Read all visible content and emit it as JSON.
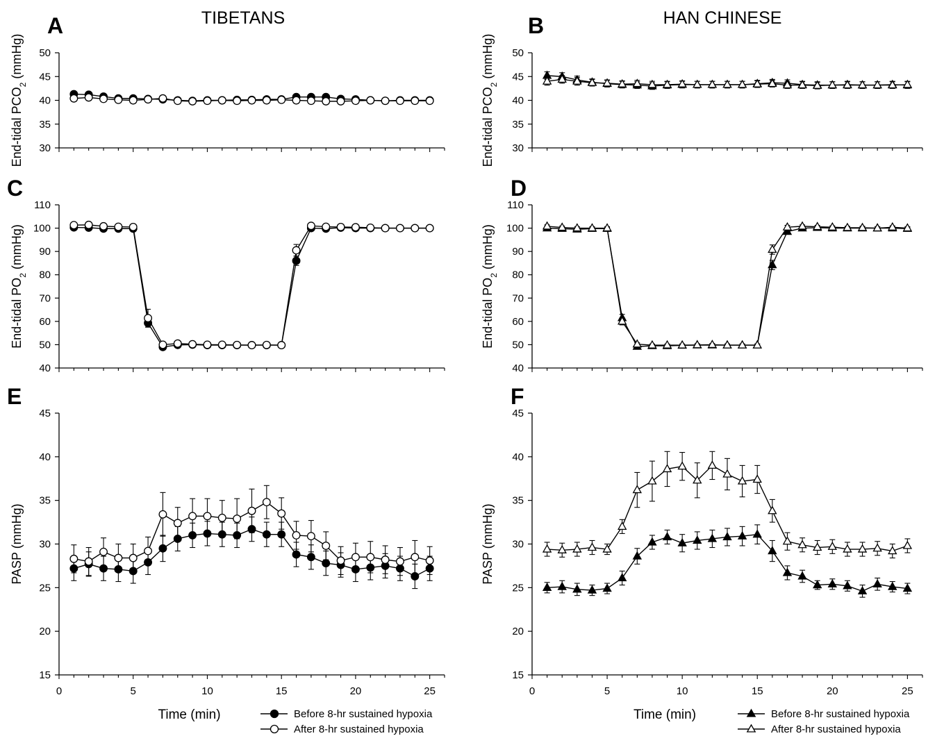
{
  "columns": {
    "left_title": "TIBETANS",
    "right_title": "HAN CHINESE"
  },
  "legend_left": {
    "before": "Before 8-hr sustained hypoxia",
    "after": "After 8-hr sustained hypoxia"
  },
  "legend_right": {
    "before": "Before 8-hr sustained hypoxia",
    "after": "After 8-hr sustained hypoxia"
  },
  "chart_data": [
    {
      "panel": "A",
      "type": "line",
      "ylabel_main": "End-tidal PCO",
      "ylabel_sub": "2",
      "ylabel_end": " (mmHg)",
      "xlabel": "",
      "xlim": [
        0,
        26
      ],
      "ylim": [
        30,
        50
      ],
      "xticks": [],
      "yticks": [
        30,
        35,
        40,
        45,
        50
      ],
      "x": [
        1,
        2,
        3,
        4,
        5,
        6,
        7,
        8,
        9,
        10,
        11,
        12,
        13,
        14,
        15,
        16,
        17,
        18,
        19,
        20,
        21,
        22,
        23,
        24,
        25
      ],
      "series": [
        {
          "name": "Before 8-hr sustained hypoxia",
          "marker": "circle",
          "fill": "#000000",
          "values": [
            41.3,
            41.2,
            40.8,
            40.4,
            40.4,
            40.3,
            40.2,
            40.0,
            39.9,
            40.0,
            40.0,
            40.1,
            40.1,
            40.2,
            40.2,
            40.7,
            40.7,
            40.7,
            40.3,
            40.2,
            40.0,
            39.9,
            40.0,
            40.0,
            40.0
          ],
          "errors": [
            0.5,
            0.5,
            0.5,
            0.5,
            0.5,
            0.5,
            0.6,
            0.5,
            0.5,
            0.5,
            0.5,
            0.5,
            0.5,
            0.5,
            0.5,
            0.5,
            0.5,
            0.5,
            0.5,
            0.5,
            0.5,
            0.5,
            0.5,
            0.5,
            0.5
          ]
        },
        {
          "name": "After 8-hr sustained hypoxia",
          "marker": "circle",
          "fill": "#ffffff",
          "values": [
            40.4,
            40.6,
            40.3,
            40.1,
            40.0,
            40.2,
            40.4,
            39.9,
            39.8,
            39.9,
            40.0,
            39.9,
            40.0,
            40.0,
            40.1,
            40.0,
            39.9,
            39.8,
            39.8,
            39.9,
            40.0,
            39.9,
            39.9,
            39.9,
            39.9
          ],
          "errors": [
            0.6,
            0.6,
            0.6,
            0.6,
            0.6,
            0.6,
            0.6,
            0.6,
            0.6,
            0.6,
            0.6,
            0.6,
            0.6,
            0.6,
            0.6,
            0.6,
            0.6,
            0.6,
            0.6,
            0.6,
            0.6,
            0.6,
            0.6,
            0.6,
            0.6
          ]
        }
      ]
    },
    {
      "panel": "B",
      "type": "line",
      "ylabel_main": "End-tidal PCO",
      "ylabel_sub": "2",
      "ylabel_end": " (mmHg)",
      "xlabel": "",
      "xlim": [
        0,
        26
      ],
      "ylim": [
        30,
        50
      ],
      "xticks": [],
      "yticks": [
        30,
        35,
        40,
        45,
        50
      ],
      "x": [
        1,
        2,
        3,
        4,
        5,
        6,
        7,
        8,
        9,
        10,
        11,
        12,
        13,
        14,
        15,
        16,
        17,
        18,
        19,
        20,
        21,
        22,
        23,
        24,
        25
      ],
      "series": [
        {
          "name": "Before 8-hr sustained hypoxia",
          "marker": "triangle",
          "fill": "#000000",
          "values": [
            45.2,
            45.0,
            44.3,
            43.8,
            43.5,
            43.3,
            43.2,
            43.0,
            43.2,
            43.3,
            43.3,
            43.3,
            43.3,
            43.3,
            43.5,
            43.7,
            43.6,
            43.3,
            43.2,
            43.2,
            43.3,
            43.2,
            43.2,
            43.3,
            43.2
          ],
          "errors": [
            0.8,
            0.8,
            0.8,
            0.7,
            0.7,
            0.7,
            0.7,
            0.7,
            0.7,
            0.7,
            0.7,
            0.7,
            0.7,
            0.7,
            0.7,
            0.7,
            0.7,
            0.7,
            0.7,
            0.7,
            0.7,
            0.7,
            0.7,
            0.7,
            0.7
          ]
        },
        {
          "name": "After 8-hr sustained hypoxia",
          "marker": "triangle",
          "fill": "#ffffff",
          "values": [
            44.0,
            44.4,
            44.0,
            43.7,
            43.6,
            43.4,
            43.5,
            43.3,
            43.3,
            43.4,
            43.3,
            43.3,
            43.3,
            43.3,
            43.4,
            43.5,
            43.2,
            43.2,
            43.1,
            43.2,
            43.2,
            43.2,
            43.2,
            43.2,
            43.3
          ],
          "errors": [
            0.8,
            0.8,
            0.8,
            0.7,
            0.7,
            0.7,
            0.7,
            0.7,
            0.7,
            0.7,
            0.7,
            0.7,
            0.7,
            0.7,
            0.7,
            0.7,
            0.7,
            0.7,
            0.7,
            0.7,
            0.7,
            0.7,
            0.7,
            0.7,
            0.7
          ]
        }
      ]
    },
    {
      "panel": "C",
      "type": "line",
      "ylabel_main": "End-tidal PO",
      "ylabel_sub": "2",
      "ylabel_end": " (mmHg)",
      "xlabel": "",
      "xlim": [
        0,
        26
      ],
      "ylim": [
        40,
        110
      ],
      "xticks": [],
      "yticks": [
        40,
        50,
        60,
        70,
        80,
        90,
        100,
        110
      ],
      "x": [
        1,
        2,
        3,
        4,
        5,
        6,
        7,
        8,
        9,
        10,
        11,
        12,
        13,
        14,
        15,
        16,
        17,
        18,
        19,
        20,
        21,
        22,
        23,
        24,
        25
      ],
      "series": [
        {
          "name": "Before 8-hr sustained hypoxia",
          "marker": "circle",
          "fill": "#000000",
          "values": [
            100.3,
            100.2,
            99.8,
            99.8,
            99.8,
            59.3,
            49.0,
            49.9,
            50.0,
            49.8,
            49.8,
            49.8,
            49.8,
            49.8,
            49.8,
            86.0,
            100.0,
            99.8,
            100.2,
            100.0,
            100.0,
            100.0,
            100.0,
            100.0,
            100.0
          ],
          "errors": [
            0.6,
            0.6,
            0.6,
            0.6,
            0.6,
            1.8,
            0.6,
            0.5,
            0.5,
            0.5,
            0.5,
            0.5,
            0.5,
            0.5,
            0.5,
            2.0,
            0.6,
            0.6,
            0.6,
            0.6,
            0.6,
            0.6,
            0.6,
            0.6,
            0.6
          ]
        },
        {
          "name": "After 8-hr sustained hypoxia",
          "marker": "circle",
          "fill": "#ffffff",
          "values": [
            101.3,
            101.4,
            100.8,
            100.6,
            100.5,
            61.4,
            50.0,
            50.5,
            50.2,
            50.0,
            50.0,
            49.9,
            49.8,
            49.9,
            49.8,
            90.5,
            101.0,
            100.6,
            100.5,
            100.4,
            100.2,
            100.0,
            100.0,
            100.0,
            100.0
          ],
          "errors": [
            0.6,
            0.6,
            0.6,
            0.6,
            0.6,
            3.8,
            0.6,
            0.5,
            0.5,
            0.5,
            0.5,
            0.5,
            0.5,
            0.5,
            0.5,
            2.5,
            0.6,
            0.6,
            0.6,
            0.6,
            0.6,
            0.6,
            0.6,
            0.6,
            0.6
          ]
        }
      ]
    },
    {
      "panel": "D",
      "type": "line",
      "ylabel_main": "End-tidal PO",
      "ylabel_sub": "2",
      "ylabel_end": " (mmHg)",
      "xlabel": "",
      "xlim": [
        0,
        26
      ],
      "ylim": [
        40,
        110
      ],
      "xticks": [],
      "yticks": [
        40,
        50,
        60,
        70,
        80,
        90,
        100,
        110
      ],
      "x": [
        1,
        2,
        3,
        4,
        5,
        6,
        7,
        8,
        9,
        10,
        11,
        12,
        13,
        14,
        15,
        16,
        17,
        18,
        19,
        20,
        21,
        22,
        23,
        24,
        25
      ],
      "series": [
        {
          "name": "Before 8-hr sustained hypoxia",
          "marker": "triangle",
          "fill": "#000000",
          "values": [
            100.0,
            99.8,
            99.5,
            99.8,
            99.8,
            61.5,
            49.2,
            49.5,
            49.5,
            49.7,
            49.8,
            49.8,
            49.8,
            49.8,
            49.8,
            84.2,
            98.5,
            100.0,
            100.2,
            100.0,
            100.0,
            100.0,
            100.0,
            100.0,
            99.8
          ],
          "errors": [
            0.6,
            0.6,
            0.6,
            0.6,
            0.6,
            1.5,
            0.6,
            0.5,
            0.5,
            0.5,
            0.5,
            0.5,
            0.5,
            0.5,
            0.5,
            2.0,
            1.0,
            0.6,
            0.6,
            0.6,
            0.6,
            0.6,
            0.6,
            0.6,
            0.6
          ]
        },
        {
          "name": "After 8-hr sustained hypoxia",
          "marker": "triangle",
          "fill": "#ffffff",
          "values": [
            100.8,
            100.3,
            100.0,
            100.0,
            100.0,
            60.0,
            50.2,
            49.8,
            49.8,
            49.8,
            49.9,
            50.0,
            49.8,
            49.8,
            49.8,
            90.8,
            100.4,
            100.8,
            100.6,
            100.4,
            100.2,
            100.2,
            100.0,
            100.4,
            100.0
          ],
          "errors": [
            0.6,
            0.6,
            0.6,
            0.6,
            0.6,
            1.5,
            0.6,
            0.5,
            0.5,
            0.5,
            0.5,
            0.5,
            0.5,
            0.5,
            0.5,
            2.0,
            0.8,
            0.6,
            0.6,
            0.6,
            0.6,
            0.6,
            0.6,
            0.6,
            0.6
          ]
        }
      ]
    },
    {
      "panel": "E",
      "type": "line",
      "ylabel_main": "PASP (mmHg)",
      "ylabel_sub": "",
      "ylabel_end": "",
      "xlabel": "Time (min)",
      "xlim": [
        0,
        26
      ],
      "ylim": [
        15,
        45
      ],
      "xticks": [
        0,
        5,
        10,
        15,
        20,
        25
      ],
      "yticks": [
        15,
        20,
        25,
        30,
        35,
        40,
        45
      ],
      "x": [
        1,
        2,
        3,
        4,
        5,
        6,
        7,
        8,
        9,
        10,
        11,
        12,
        13,
        14,
        15,
        16,
        17,
        18,
        19,
        20,
        21,
        22,
        23,
        24,
        25
      ],
      "series": [
        {
          "name": "Before 8-hr sustained hypoxia",
          "marker": "circle",
          "fill": "#000000",
          "values": [
            27.2,
            27.7,
            27.2,
            27.1,
            26.9,
            27.9,
            29.5,
            30.6,
            31.0,
            31.2,
            31.1,
            31.0,
            31.7,
            31.1,
            31.1,
            28.8,
            28.5,
            27.8,
            27.6,
            27.1,
            27.3,
            27.5,
            27.2,
            26.3,
            27.2
          ],
          "errors": [
            1.4,
            1.4,
            1.4,
            1.4,
            1.4,
            1.4,
            1.5,
            1.4,
            1.4,
            1.4,
            1.4,
            1.4,
            1.4,
            1.4,
            1.4,
            1.4,
            1.4,
            1.4,
            1.4,
            1.4,
            1.4,
            1.4,
            1.4,
            1.4,
            1.4
          ]
        },
        {
          "name": "After 8-hr sustained hypoxia",
          "marker": "circle",
          "fill": "#ffffff",
          "values": [
            28.3,
            28.0,
            29.1,
            28.4,
            28.4,
            29.2,
            33.4,
            32.4,
            33.2,
            33.2,
            33.0,
            32.9,
            33.8,
            34.8,
            33.5,
            31.0,
            30.9,
            29.8,
            28.1,
            28.5,
            28.5,
            28.2,
            28.0,
            28.5,
            28.1
          ],
          "errors": [
            1.6,
            1.6,
            1.6,
            1.6,
            1.6,
            1.6,
            2.5,
            1.8,
            2.0,
            2.0,
            2.0,
            2.3,
            2.5,
            1.9,
            1.8,
            1.6,
            1.8,
            1.6,
            1.6,
            1.6,
            1.8,
            1.6,
            1.6,
            1.9,
            1.6
          ]
        }
      ]
    },
    {
      "panel": "F",
      "type": "line",
      "ylabel_main": "PASP (mmHg)",
      "ylabel_sub": "",
      "ylabel_end": "",
      "xlabel": "Time (min)",
      "xlim": [
        0,
        26
      ],
      "ylim": [
        15,
        45
      ],
      "xticks": [
        0,
        5,
        10,
        15,
        20,
        25
      ],
      "yticks": [
        15,
        20,
        25,
        30,
        35,
        40,
        45
      ],
      "x": [
        1,
        2,
        3,
        4,
        5,
        6,
        7,
        8,
        9,
        10,
        11,
        12,
        13,
        14,
        15,
        16,
        17,
        18,
        19,
        20,
        21,
        22,
        23,
        24,
        25
      ],
      "series": [
        {
          "name": "Before 8-hr sustained hypoxia",
          "marker": "triangle",
          "fill": "#000000",
          "values": [
            25.0,
            25.1,
            24.8,
            24.7,
            24.9,
            26.1,
            28.6,
            30.2,
            30.8,
            30.1,
            30.4,
            30.6,
            30.8,
            30.9,
            31.1,
            29.2,
            26.7,
            26.3,
            25.3,
            25.4,
            25.2,
            24.6,
            25.4,
            25.1,
            24.9
          ],
          "errors": [
            0.6,
            0.7,
            0.7,
            0.6,
            0.6,
            0.8,
            0.9,
            0.8,
            0.8,
            1.0,
            1.0,
            1.0,
            1.0,
            1.1,
            1.1,
            1.2,
            0.8,
            0.7,
            0.5,
            0.6,
            0.6,
            0.7,
            0.7,
            0.6,
            0.6
          ]
        },
        {
          "name": "After 8-hr sustained hypoxia",
          "marker": "triangle",
          "fill": "#ffffff",
          "values": [
            29.4,
            29.3,
            29.4,
            29.6,
            29.4,
            32.0,
            36.2,
            37.2,
            38.6,
            38.9,
            37.3,
            39.0,
            38.0,
            37.2,
            37.4,
            33.8,
            30.3,
            29.9,
            29.6,
            29.7,
            29.4,
            29.4,
            29.5,
            29.2,
            29.8
          ],
          "errors": [
            0.8,
            0.8,
            0.8,
            0.8,
            0.6,
            0.8,
            2.0,
            2.3,
            2.0,
            1.6,
            2.0,
            1.6,
            1.8,
            1.8,
            1.6,
            1.3,
            1.0,
            0.8,
            0.8,
            0.8,
            0.8,
            0.8,
            0.8,
            0.8,
            0.8
          ]
        }
      ]
    }
  ]
}
